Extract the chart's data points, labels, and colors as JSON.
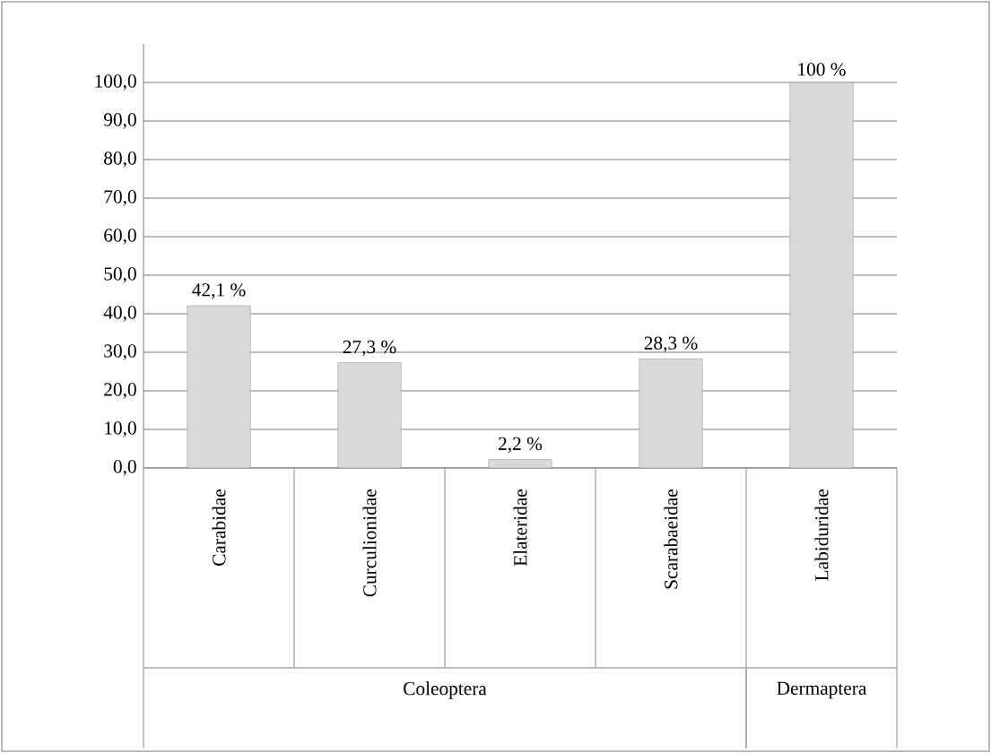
{
  "chart_data": {
    "type": "bar",
    "categories": [
      "Carabidae",
      "Curculionidae",
      "Elateridae",
      "Scarabaeidae",
      "Labiduridae"
    ],
    "values": [
      42.1,
      27.3,
      2.2,
      28.3,
      100
    ],
    "value_labels": [
      "42,1 %",
      "27,3 %",
      "2,2 %",
      "28,3 %",
      "100 %"
    ],
    "color": "#d9d9d9",
    "ylim": [
      0,
      110
    ],
    "yticks": [
      {
        "value": 0,
        "label": "0,0"
      },
      {
        "value": 10,
        "label": "10,0"
      },
      {
        "value": 20,
        "label": "20,0"
      },
      {
        "value": 30,
        "label": "30,0"
      },
      {
        "value": 40,
        "label": "40,0"
      },
      {
        "value": 50,
        "label": "50,0"
      },
      {
        "value": 60,
        "label": "60,0"
      },
      {
        "value": 70,
        "label": "70,0"
      },
      {
        "value": 80,
        "label": "80,0"
      },
      {
        "value": 90,
        "label": "90,0"
      },
      {
        "value": 100,
        "label": "100,0"
      }
    ],
    "grid": "y",
    "annotations": [
      "Coleoptera",
      "Dermaptera"
    ]
  }
}
